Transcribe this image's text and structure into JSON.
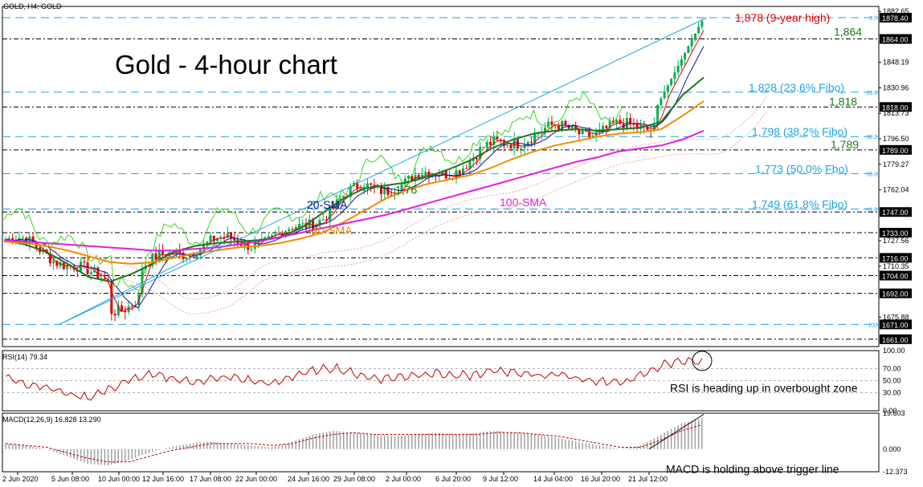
{
  "header": {
    "symbol_line": "GOLD, H4:  GOLD",
    "chart_title": "Gold - 4-hour chart"
  },
  "colors": {
    "candle_up": "#00b050",
    "candle_down": "#e00000",
    "sma20": "#1a7a1a",
    "sma40": "#f08c00",
    "sma100": "#e020e0",
    "fib": "#1fa3e6",
    "trendline": "#1fa3e6",
    "chikou": "#39d61b",
    "tenkan": "#e00000",
    "kijun": "#1010a0",
    "cloud": "#f0a0a0",
    "rsi": "#c00000",
    "macd_hist": "#a0a0a0",
    "macd_signal": "#c00000",
    "annot_high": "#e00000",
    "annot_support": "#1a7a1a"
  },
  "chart_data": [
    {
      "type": "candlestick",
      "title": "Gold - 4-hour chart",
      "symbol": "GOLD, H4",
      "ylim": [
        1656,
        1886
      ],
      "x_tick_labels": [
        "2 Jun 2020",
        "5 Jun 08:00",
        "10 Jun 00:00",
        "12 Jun 16:00",
        "17 Jun 08:00",
        "22 Jun 00:00",
        "24 Jun 16:00",
        "29 Jun 08:00",
        "2 Jul 00:00",
        "6 Jul 20:00",
        "9 Jul 12:00",
        "14 Jul 04:00",
        "16 Jul 20:00",
        "21 Jul 12:00"
      ],
      "y_tick_labels": [
        "1882.65",
        "1878.40",
        "1864.00",
        "1848.19",
        "1830.96",
        "1818.00",
        "1813.73",
        "1796.50",
        "1789.00",
        "1779.27",
        "1762.04",
        "1747.00",
        "1733.00",
        "1727.56",
        "1716.00",
        "1710.35",
        "1704.00",
        "1692.00",
        "1675.88",
        "1671.00",
        "1661.00"
      ],
      "highlighted_price_labels": [
        "1878.40",
        "1864.00",
        "1818.00",
        "1789.00",
        "1747.00",
        "1733.00",
        "1716.00",
        "1704.00",
        "1692.00",
        "1671.00",
        "1661.00"
      ],
      "fibonacci_levels": [
        {
          "label": "0.0",
          "price": 1878.4
        },
        {
          "label": "23.6",
          "price": 1828
        },
        {
          "label": "38.2",
          "price": 1798
        },
        {
          "label": "50.0",
          "price": 1773
        },
        {
          "label": "61.8",
          "price": 1749
        },
        {
          "label": "100",
          "price": 1671
        }
      ],
      "horizontal_levels": [
        1864,
        1818,
        1789,
        1747,
        1733,
        1716,
        1704,
        1692,
        1661
      ],
      "annotations": {
        "high": "1,878 (9-year high)",
        "r1864": "1,864",
        "fib236": "1,828 (23.6% Fibo)",
        "r1818": "1,818",
        "fib382": "1,798 (38.2% Fibo)",
        "r1789": "1,789",
        "fib500": "1,773 (50.0% Fbo)",
        "fib618": "1,749 (61.8% Fibo)",
        "low_mark": "1,76",
        "sma20": "20-SMA",
        "sma40": "40-SMA",
        "sma100": "100-SMA"
      },
      "series": [
        {
          "name": "20-SMA",
          "values": [
            1728,
            1725,
            1720,
            1712,
            1703,
            1700,
            1705,
            1712,
            1720,
            1724,
            1726,
            1727,
            1728,
            1730,
            1736,
            1746,
            1756,
            1763,
            1765,
            1767,
            1771,
            1776,
            1782,
            1790,
            1796,
            1800,
            1802,
            1803,
            1802,
            1803,
            1804,
            1808,
            1826,
            1838
          ]
        },
        {
          "name": "40-SMA",
          "values": [
            1727,
            1726,
            1724,
            1721,
            1717,
            1713,
            1712,
            1713,
            1716,
            1719,
            1721,
            1723,
            1724,
            1726,
            1729,
            1733,
            1740,
            1748,
            1756,
            1762,
            1766,
            1769,
            1772,
            1777,
            1783,
            1788,
            1792,
            1795,
            1798,
            1800,
            1801,
            1803,
            1812,
            1822
          ]
        },
        {
          "name": "100-SMA",
          "values": [
            1728,
            1727,
            1726,
            1725,
            1724,
            1723,
            1722,
            1721,
            1721,
            1722,
            1723,
            1725,
            1727,
            1730,
            1733,
            1736,
            1739,
            1742,
            1745,
            1749,
            1753,
            1757,
            1761,
            1765,
            1769,
            1773,
            1777,
            1781,
            1784,
            1788,
            1790,
            1792,
            1796,
            1802
          ]
        }
      ]
    },
    {
      "type": "line",
      "title": "RSI(14) 79.34",
      "ylim": [
        0,
        100
      ],
      "y_tick_labels": [
        "100.00",
        "70.00",
        "50.00",
        "30.00",
        "0.00"
      ],
      "reference_levels": [
        70,
        50,
        30
      ],
      "annotation": "RSI is heading up in overbought zone",
      "values": [
        55,
        45,
        40,
        28,
        22,
        35,
        50,
        60,
        55,
        48,
        52,
        56,
        50,
        44,
        58,
        66,
        72,
        62,
        54,
        55,
        60,
        63,
        57,
        60,
        67,
        64,
        58,
        62,
        52,
        50,
        46,
        58,
        75,
        84,
        79
      ]
    },
    {
      "type": "bar",
      "title": "MACD(12,26,9) 16.828 13.290",
      "ylim": [
        -12.373,
        19.603
      ],
      "y_tick_labels": [
        "19.603",
        "0.000",
        "-12.373"
      ],
      "annotation": "MACD is holding above trigger line",
      "series": [
        {
          "name": "histogram",
          "values": [
            3,
            2,
            0,
            -4,
            -8,
            -9,
            -6,
            -2,
            1,
            3,
            4,
            3,
            2,
            1,
            4,
            8,
            10,
            9,
            8,
            7,
            8,
            9,
            8,
            9,
            10,
            9,
            8,
            6,
            4,
            2,
            0,
            2,
            8,
            14,
            17
          ]
        },
        {
          "name": "signal",
          "values": [
            3,
            2,
            1,
            -2,
            -5,
            -7,
            -7,
            -4,
            -1,
            1,
            3,
            3,
            3,
            2,
            3,
            6,
            8,
            9,
            8,
            8,
            8,
            8,
            8,
            8,
            9,
            9,
            8,
            7,
            5,
            3,
            1,
            1,
            5,
            10,
            13.3
          ]
        }
      ]
    }
  ]
}
